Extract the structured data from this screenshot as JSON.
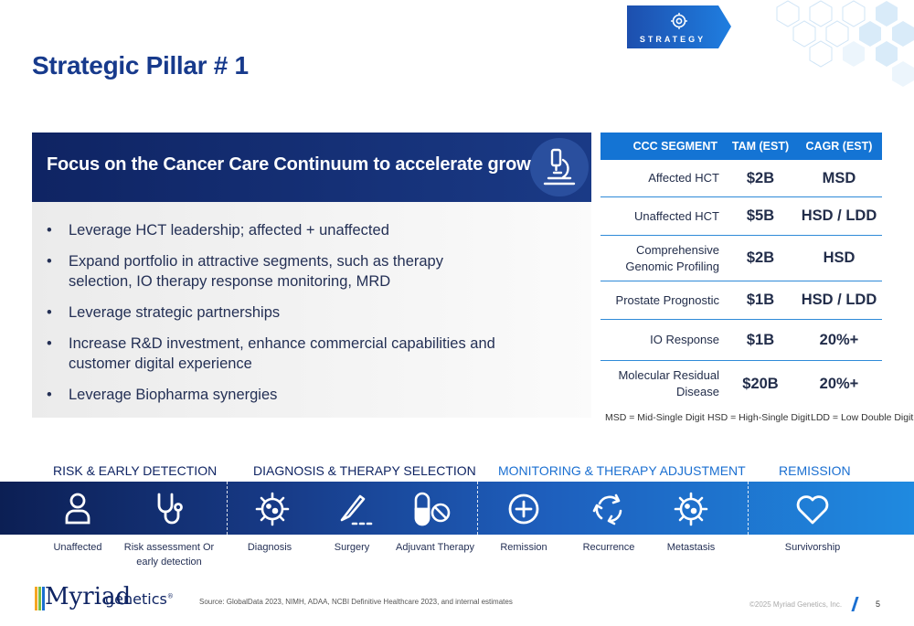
{
  "badge": {
    "label": "STRATEGY",
    "icon": "target-icon"
  },
  "page_title": "Strategic Pillar # 1",
  "focus": {
    "title": "Focus on the Cancer Care Continuum to accelerate growth",
    "icon": "microscope-icon",
    "bullets": [
      "Leverage HCT leadership; affected + unaffected",
      "Expand portfolio in attractive segments, such as therapy selection, IO therapy response monitoring, MRD",
      "Leverage strategic partnerships",
      "Increase R&D investment, enhance commercial capabilities and customer digital experience",
      "Leverage Biopharma synergies"
    ]
  },
  "segment_table": {
    "headers": [
      "CCC SEGMENT",
      "TAM (EST)",
      "CAGR (EST)"
    ],
    "rows": [
      {
        "segment": "Affected HCT",
        "tam": "$2B",
        "cagr": "MSD"
      },
      {
        "segment": "Unaffected HCT",
        "tam": "$5B",
        "cagr": "HSD / LDD"
      },
      {
        "segment": "Comprehensive Genomic Profiling",
        "tam": "$2B",
        "cagr": "HSD"
      },
      {
        "segment": "Prostate Prognostic",
        "tam": "$1B",
        "cagr": "HSD / LDD"
      },
      {
        "segment": "IO Response",
        "tam": "$1B",
        "cagr": "20%+"
      },
      {
        "segment": "Molecular Residual Disease",
        "tam": "$20B",
        "cagr": "20%+"
      }
    ],
    "legend": [
      "MSD = Mid-Single Digit",
      "HSD = High-Single Digit",
      "LDD = Low Double Digit"
    ]
  },
  "stages": [
    "RISK & EARLY DETECTION",
    "DIAGNOSIS & THERAPY SELECTION",
    "MONITORING & THERAPY ADJUSTMENT",
    "REMISSION"
  ],
  "continuum_items": [
    {
      "label": "Unaffected",
      "icon": "person-icon"
    },
    {
      "label": "Risk assessment Or early detection",
      "icon": "stethoscope-icon"
    },
    {
      "label": "Diagnosis",
      "icon": "cell-icon"
    },
    {
      "label": "Surgery",
      "icon": "scalpel-icon"
    },
    {
      "label": "Adjuvant Therapy",
      "icon": "pill-icon"
    },
    {
      "label": "Remission",
      "icon": "plus-circle-icon"
    },
    {
      "label": "Recurrence",
      "icon": "cycle-icon"
    },
    {
      "label": "Metastasis",
      "icon": "cell-icon"
    },
    {
      "label": "Survivorship",
      "icon": "heart-icon"
    }
  ],
  "footer": {
    "logo_word": "Myriad",
    "logo_sub": "genetics",
    "source": "Source: GlobalData 2023, NIMH, ADAA, NCBI Definitive Healthcare 2023, and internal estimates",
    "copyright": "©2025 Myriad Genetics, Inc.",
    "page_number": "5"
  },
  "colors": {
    "navy": "#0f2463",
    "title_blue": "#173a8c",
    "accent_blue": "#1474d4"
  }
}
